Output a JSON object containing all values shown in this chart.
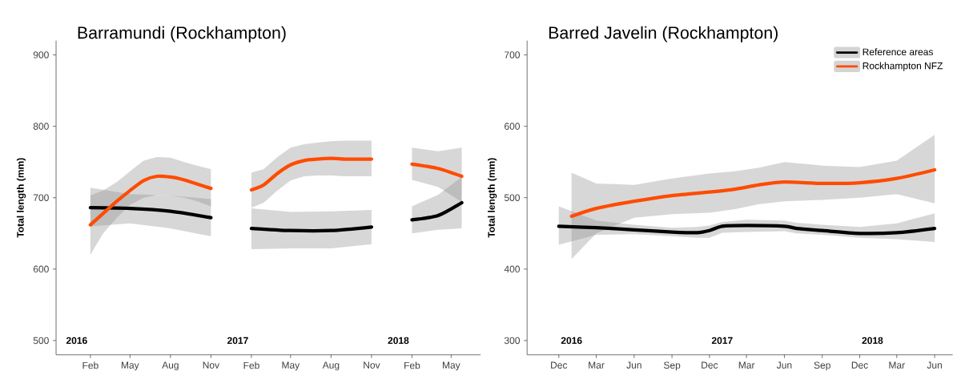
{
  "chart_data": [
    {
      "type": "line",
      "title": "Barramundi (Rockhampton)",
      "ylabel": "Total length (mm)",
      "xlim": [
        "2015-11-15",
        "2018-07-07"
      ],
      "ylim": [
        480,
        920
      ],
      "xticks": [
        {
          "value": "2016-02",
          "label": "Feb"
        },
        {
          "value": "2016-05",
          "label": "May"
        },
        {
          "value": "2016-08",
          "label": "Aug"
        },
        {
          "value": "2016-11",
          "label": "Nov"
        },
        {
          "value": "2017-02",
          "label": "Feb"
        },
        {
          "value": "2017-05",
          "label": "May"
        },
        {
          "value": "2017-08",
          "label": "Aug"
        },
        {
          "value": "2017-11",
          "label": "Nov"
        },
        {
          "value": "2018-02",
          "label": "Feb"
        },
        {
          "value": "2018-05",
          "label": "May"
        }
      ],
      "yticks": [
        500,
        600,
        700,
        800,
        900
      ],
      "annotations": [
        "2016",
        "2017",
        "2018"
      ],
      "legend": false,
      "series": [
        {
          "color": "#000000",
          "x": [
            "2016-02",
            "2016-05",
            "2016-08",
            "2016-11",
            "2016-12-15",
            "2017-02",
            "2017-05",
            "2017-08",
            "2017-11",
            "2017-12-15",
            "2018-02",
            "2018-04",
            "2018-05-25"
          ],
          "values": [
            686,
            685,
            681,
            672,
            null,
            657,
            654,
            654,
            659,
            null,
            669,
            675,
            693
          ],
          "lower": [
            660,
            664,
            657,
            646,
            null,
            628,
            629,
            629,
            635,
            null,
            650,
            655,
            657
          ],
          "upper": [
            714,
            705,
            703,
            698,
            null,
            685,
            680,
            681,
            683,
            null,
            688,
            704,
            729
          ]
        },
        {
          "color": "#ff4b00",
          "x": [
            "2016-02",
            "2016-03",
            "2016-04",
            "2016-05",
            "2016-06",
            "2016-07",
            "2016-08",
            "2016-09",
            "2016-10",
            "2016-11",
            "2016-12-15",
            "2017-02",
            "2017-03",
            "2017-04",
            "2017-05",
            "2017-06",
            "2017-07",
            "2017-08",
            "2017-09",
            "2017-10",
            "2017-11",
            "2017-12-15",
            "2018-02",
            "2018-04",
            "2018-05-25"
          ],
          "values": [
            662,
            678,
            695,
            710,
            724,
            730,
            729,
            725,
            719,
            713,
            null,
            711,
            718,
            734,
            746,
            752,
            754,
            755,
            754,
            754,
            754,
            null,
            747,
            741,
            730
          ],
          "lower": [
            620,
            650,
            672,
            690,
            700,
            704,
            703,
            700,
            695,
            688,
            null,
            686,
            693,
            710,
            724,
            730,
            731,
            731,
            730,
            730,
            730,
            null,
            725,
            715,
            694
          ],
          "upper": [
            703,
            710,
            722,
            737,
            752,
            757,
            756,
            750,
            745,
            740,
            null,
            735,
            740,
            757,
            770,
            775,
            777,
            779,
            780,
            780,
            780,
            null,
            770,
            765,
            770
          ]
        }
      ]
    },
    {
      "type": "line",
      "title": "Barred Javelin (Rockhampton)",
      "ylabel": "Total length (mm)",
      "xlim": [
        "2015-09-15",
        "2018-07-15"
      ],
      "ylim": [
        280,
        720
      ],
      "xticks": [
        {
          "value": "2015-12",
          "label": "Dec"
        },
        {
          "value": "2016-03",
          "label": "Mar"
        },
        {
          "value": "2016-06",
          "label": "Jun"
        },
        {
          "value": "2016-09",
          "label": "Sep"
        },
        {
          "value": "2016-12",
          "label": "Dec"
        },
        {
          "value": "2017-03",
          "label": "Mar"
        },
        {
          "value": "2017-06",
          "label": "Jun"
        },
        {
          "value": "2017-09",
          "label": "Sep"
        },
        {
          "value": "2017-12",
          "label": "Dec"
        },
        {
          "value": "2018-03",
          "label": "Mar"
        },
        {
          "value": "2018-06",
          "label": "Jun"
        }
      ],
      "yticks": [
        300,
        400,
        500,
        600,
        700
      ],
      "annotations": [
        "2016",
        "2017",
        "2018"
      ],
      "legend": "top right",
      "series": [
        {
          "name": "Reference areas",
          "color": "#000000",
          "x": [
            "2015-12",
            "2016-03",
            "2016-06",
            "2016-09",
            "2016-11",
            "2016-12",
            "2017-01",
            "2017-03",
            "2017-06",
            "2017-07",
            "2017-09",
            "2017-12",
            "2018-03",
            "2018-06"
          ],
          "values": [
            460,
            458,
            455,
            452,
            451,
            454,
            460,
            461,
            460,
            457,
            454,
            450,
            451,
            457
          ],
          "lower": [
            434,
            448,
            449,
            446,
            444,
            444,
            451,
            452,
            453,
            450,
            448,
            444,
            442,
            438
          ],
          "upper": [
            488,
            468,
            462,
            458,
            459,
            461,
            466,
            469,
            468,
            465,
            462,
            459,
            464,
            478
          ]
        },
        {
          "name": "Rockhampton NFZ",
          "color": "#ff4b00",
          "x": [
            "2016-01",
            "2016-03",
            "2016-06",
            "2016-09",
            "2016-12",
            "2017-02",
            "2017-04",
            "2017-06",
            "2017-09",
            "2017-12",
            "2018-03",
            "2018-06"
          ],
          "values": [
            474,
            485,
            495,
            503,
            508,
            512,
            518,
            522,
            520,
            521,
            527,
            539
          ],
          "lower": [
            414,
            450,
            472,
            477,
            479,
            484,
            491,
            495,
            497,
            500,
            505,
            492
          ],
          "upper": [
            535,
            520,
            518,
            527,
            534,
            537,
            542,
            550,
            545,
            543,
            552,
            588
          ]
        }
      ]
    }
  ]
}
